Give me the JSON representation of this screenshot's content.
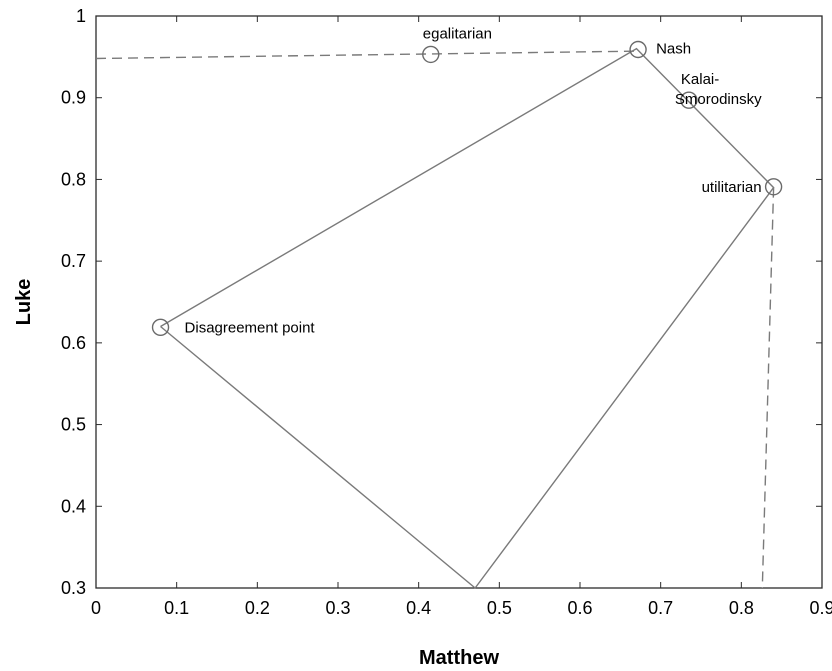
{
  "chart_data": {
    "type": "line",
    "xlabel": "Matthew",
    "ylabel": "Luke",
    "xlim": [
      0,
      0.9
    ],
    "ylim": [
      0.3,
      1.0
    ],
    "x_ticks": [
      0,
      0.1,
      0.2,
      0.3,
      0.4,
      0.5,
      0.6,
      0.7,
      0.8,
      0.9
    ],
    "y_ticks": [
      0.3,
      0.4,
      0.5,
      0.6,
      0.7,
      0.8,
      0.9,
      1
    ],
    "grid": false,
    "series": [
      {
        "style": "solid",
        "x": [
          0.08,
          0.67,
          0.84,
          0.47,
          0.08
        ],
        "y": [
          0.62,
          0.96,
          0.79,
          0.3,
          0.62
        ]
      },
      {
        "style": "dashed",
        "x": [
          0.0,
          0.67
        ],
        "y": [
          0.948,
          0.957
        ]
      },
      {
        "style": "dashed",
        "x": [
          0.84,
          0.826
        ],
        "y": [
          0.79,
          0.3
        ]
      }
    ],
    "annotations": [
      {
        "label": "egalitarian",
        "x": 0.415,
        "y": 0.953
      },
      {
        "label": "Nash",
        "x": 0.672,
        "y": 0.959
      },
      {
        "label": "Kalai-\nSmorodinsky",
        "x": 0.735,
        "y": 0.897
      },
      {
        "label": "utilitarian",
        "x": 0.84,
        "y": 0.791
      },
      {
        "label": "Disagreement point",
        "x": 0.08,
        "y": 0.619
      }
    ]
  }
}
